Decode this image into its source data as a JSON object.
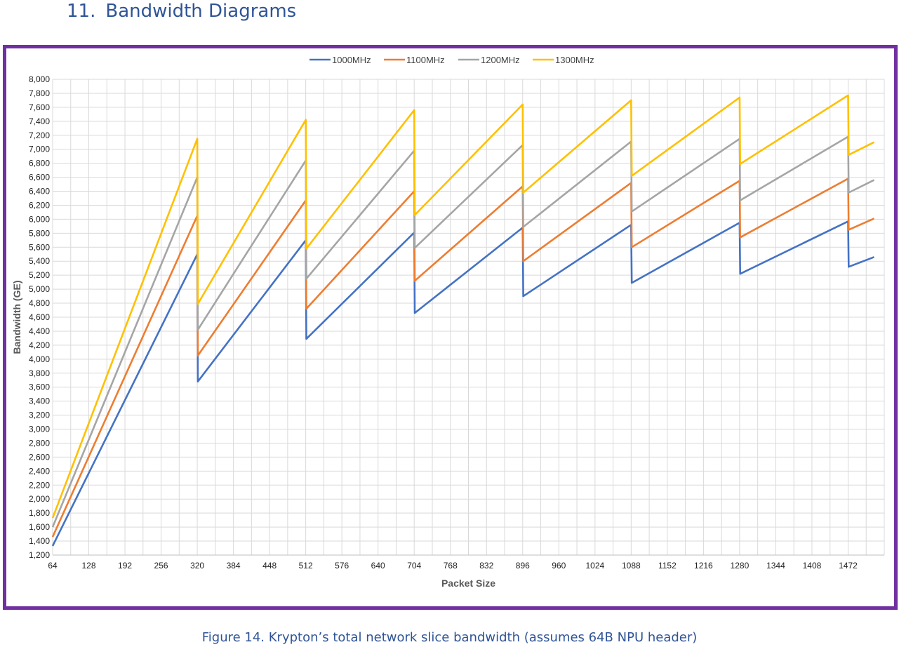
{
  "page": {
    "section_number": "11.",
    "section_title": "Bandwidth Diagrams",
    "caption": "Figure 14.  Krypton’s total network slice bandwidth (assumes 64B NPU header)"
  },
  "chart_data": {
    "type": "line",
    "title": "",
    "xlabel": "Packet Size",
    "ylabel": "Bandwidth (GE)",
    "xlim": [
      64,
      1536
    ],
    "ylim": [
      1200,
      8000
    ],
    "x_ticks": [
      64,
      128,
      192,
      256,
      320,
      384,
      448,
      512,
      576,
      640,
      704,
      768,
      832,
      896,
      960,
      1024,
      1088,
      1152,
      1216,
      1280,
      1344,
      1408,
      1472
    ],
    "y_ticks": [
      1200,
      1400,
      1600,
      1800,
      2000,
      2200,
      2400,
      2600,
      2800,
      3000,
      3200,
      3400,
      3600,
      3800,
      4000,
      4200,
      4400,
      4600,
      4800,
      5000,
      5200,
      5400,
      5600,
      5800,
      6000,
      6200,
      6400,
      6600,
      6800,
      7000,
      7200,
      7400,
      7600,
      7800,
      8000
    ],
    "grid": true,
    "legend_position": "top-center",
    "x": [
      64,
      320,
      321,
      512,
      513,
      704,
      705,
      896,
      897,
      1088,
      1089,
      1280,
      1281,
      1472,
      1473,
      1518
    ],
    "series": [
      {
        "name": "1000MHz",
        "color": "#4472c4",
        "values": [
          1330,
          5500,
          3680,
          5700,
          4290,
          5810,
          4660,
          5880,
          4900,
          5920,
          5090,
          5950,
          5220,
          5970,
          5320,
          5460
        ]
      },
      {
        "name": "1100MHz",
        "color": "#ed7d31",
        "values": [
          1460,
          6050,
          4050,
          6270,
          4720,
          6400,
          5120,
          6470,
          5400,
          6520,
          5600,
          6550,
          5740,
          6580,
          5850,
          6010
        ]
      },
      {
        "name": "1200MHz",
        "color": "#a5a5a5",
        "values": [
          1600,
          6600,
          4420,
          6840,
          5150,
          6980,
          5590,
          7060,
          5890,
          7110,
          6110,
          7150,
          6270,
          7180,
          6380,
          6560
        ]
      },
      {
        "name": "1300MHz",
        "color": "#ffc000",
        "values": [
          1730,
          7150,
          4790,
          7420,
          5580,
          7560,
          6060,
          7640,
          6380,
          7700,
          6620,
          7740,
          6790,
          7770,
          6920,
          7100
        ]
      }
    ]
  }
}
